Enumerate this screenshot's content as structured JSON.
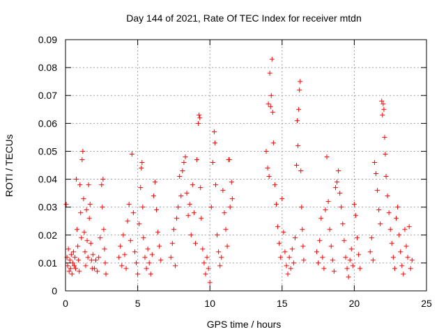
{
  "chart_data": {
    "type": "scatter",
    "title": "Day 144 of 2021, Rate Of TEC Index for receiver mtdn",
    "xlabel": "GPS time / hours",
    "ylabel": "ROTI / TECUs",
    "xlim": [
      0,
      25
    ],
    "ylim": [
      0,
      0.09
    ],
    "xticks": [
      0,
      5,
      10,
      15,
      20,
      25
    ],
    "xtick_labels": [
      "0",
      "5",
      "10",
      "15",
      "20",
      "25"
    ],
    "yticks": [
      0,
      0.01,
      0.02,
      0.03,
      0.04,
      0.05,
      0.06,
      0.07,
      0.08,
      0.09
    ],
    "ytick_labels": [
      "0",
      "0.01",
      "0.02",
      "0.03",
      "0.04",
      "0.05",
      "0.06",
      "0.07",
      "0.08",
      "0.09"
    ],
    "grid": true,
    "marker": "plus",
    "color": "#ff0000",
    "series": [
      {
        "points": [
          [
            0.05,
            0.031
          ],
          [
            0.1,
            0.012
          ],
          [
            0.15,
            0.009
          ],
          [
            0.2,
            0.015
          ],
          [
            0.25,
            0.007
          ],
          [
            0.3,
            0.011
          ],
          [
            0.35,
            0.008
          ],
          [
            0.4,
            0.013
          ],
          [
            0.45,
            0.006
          ],
          [
            0.5,
            0.01
          ],
          [
            0.55,
            0.014
          ],
          [
            0.6,
            0.009
          ],
          [
            0.65,
            0.012
          ],
          [
            0.7,
            0.008
          ],
          [
            0.75,
            0.04
          ],
          [
            0.8,
            0.022
          ],
          [
            0.85,
            0.016
          ],
          [
            0.9,
            0.011
          ],
          [
            0.95,
            0.007
          ],
          [
            1.0,
            0.038
          ],
          [
            1.05,
            0.028
          ],
          [
            1.1,
            0.019
          ],
          [
            1.15,
            0.047
          ],
          [
            1.2,
            0.05
          ],
          [
            1.25,
            0.033
          ],
          [
            1.3,
            0.021
          ],
          [
            1.35,
            0.014
          ],
          [
            1.4,
            0.009
          ],
          [
            1.45,
            0.029
          ],
          [
            1.5,
            0.018
          ],
          [
            1.55,
            0.012
          ],
          [
            1.6,
            0.038
          ],
          [
            1.65,
            0.026
          ],
          [
            1.7,
            0.031
          ],
          [
            1.75,
            0.017
          ],
          [
            1.8,
            0.011
          ],
          [
            1.85,
            0.008
          ],
          [
            1.9,
            0.013
          ],
          [
            2.0,
            0.008
          ],
          [
            2.1,
            0.011
          ],
          [
            2.2,
            0.007
          ],
          [
            2.3,
            0.012
          ],
          [
            2.4,
            0.019
          ],
          [
            2.5,
            0.038
          ],
          [
            2.55,
            0.03
          ],
          [
            2.6,
            0.04
          ],
          [
            2.65,
            0.022
          ],
          [
            2.7,
            0.015
          ],
          [
            2.75,
            0.01
          ],
          [
            2.8,
            0.006
          ],
          [
            3.7,
            0.012
          ],
          [
            3.8,
            0.016
          ],
          [
            3.9,
            0.009
          ],
          [
            4.0,
            0.02
          ],
          [
            4.1,
            0.013
          ],
          [
            4.2,
            0.008
          ],
          [
            4.3,
            0.025
          ],
          [
            4.4,
            0.031
          ],
          [
            4.5,
            0.018
          ],
          [
            4.6,
            0.049
          ],
          [
            4.7,
            0.028
          ],
          [
            4.8,
            0.014
          ],
          [
            4.9,
            0.01
          ],
          [
            5.0,
            0.006
          ],
          [
            5.1,
            0.024
          ],
          [
            5.2,
            0.037
          ],
          [
            5.25,
            0.044
          ],
          [
            5.3,
            0.046
          ],
          [
            5.35,
            0.03
          ],
          [
            5.4,
            0.019
          ],
          [
            5.5,
            0.012
          ],
          [
            5.6,
            0.008
          ],
          [
            5.7,
            0.015
          ],
          [
            5.8,
            0.01
          ],
          [
            5.9,
            0.006
          ],
          [
            6.0,
            0.013
          ],
          [
            6.1,
            0.034
          ],
          [
            6.2,
            0.039
          ],
          [
            6.3,
            0.029
          ],
          [
            6.4,
            0.021
          ],
          [
            6.5,
            0.016
          ],
          [
            6.6,
            0.011
          ],
          [
            7.3,
            0.012
          ],
          [
            7.4,
            0.017
          ],
          [
            7.5,
            0.022
          ],
          [
            7.6,
            0.009
          ],
          [
            7.7,
            0.026
          ],
          [
            7.8,
            0.03
          ],
          [
            7.9,
            0.041
          ],
          [
            8.0,
            0.034
          ],
          [
            8.1,
            0.043
          ],
          [
            8.2,
            0.046
          ],
          [
            8.3,
            0.048
          ],
          [
            8.4,
            0.035
          ],
          [
            8.5,
            0.027
          ],
          [
            8.6,
            0.031
          ],
          [
            8.7,
            0.02
          ],
          [
            8.8,
            0.038
          ],
          [
            8.9,
            0.028
          ],
          [
            9.0,
            0.017
          ],
          [
            9.1,
            0.047
          ],
          [
            9.2,
            0.06
          ],
          [
            9.25,
            0.063
          ],
          [
            9.3,
            0.062
          ],
          [
            9.35,
            0.037
          ],
          [
            9.4,
            0.026
          ],
          [
            9.5,
            0.015
          ],
          [
            9.6,
            0.01
          ],
          [
            9.7,
            0.006
          ],
          [
            9.8,
            0.012
          ],
          [
            9.9,
            0.008
          ],
          [
            10.0,
            0.003
          ],
          [
            10.1,
            0.03
          ],
          [
            10.2,
            0.046
          ],
          [
            10.3,
            0.057
          ],
          [
            10.35,
            0.053
          ],
          [
            10.4,
            0.038
          ],
          [
            10.5,
            0.02
          ],
          [
            10.6,
            0.014
          ],
          [
            10.7,
            0.009
          ],
          [
            10.8,
            0.012
          ],
          [
            10.9,
            0.036
          ],
          [
            11.0,
            0.028
          ],
          [
            11.1,
            0.022
          ],
          [
            11.2,
            0.016
          ],
          [
            11.3,
            0.047
          ],
          [
            11.35,
            0.047
          ],
          [
            11.4,
            0.03
          ],
          [
            11.5,
            0.039
          ],
          [
            11.55,
            0.033
          ],
          [
            13.9,
            0.05
          ],
          [
            14.0,
            0.044
          ],
          [
            14.05,
            0.067
          ],
          [
            14.1,
            0.041
          ],
          [
            14.15,
            0.078
          ],
          [
            14.2,
            0.066
          ],
          [
            14.25,
            0.07
          ],
          [
            14.3,
            0.083
          ],
          [
            14.35,
            0.064
          ],
          [
            14.4,
            0.053
          ],
          [
            14.5,
            0.038
          ],
          [
            14.6,
            0.031
          ],
          [
            14.7,
            0.023
          ],
          [
            14.8,
            0.017
          ],
          [
            14.9,
            0.012
          ],
          [
            15.0,
            0.033
          ],
          [
            15.1,
            0.021
          ],
          [
            15.2,
            0.014
          ],
          [
            15.3,
            0.009
          ],
          [
            15.4,
            0.006
          ],
          [
            15.5,
            0.012
          ],
          [
            15.6,
            0.008
          ],
          [
            15.7,
            0.015
          ],
          [
            15.8,
            0.01
          ],
          [
            15.9,
            0.019
          ],
          [
            16.0,
            0.045
          ],
          [
            16.05,
            0.061
          ],
          [
            16.1,
            0.052
          ],
          [
            16.15,
            0.065
          ],
          [
            16.2,
            0.072
          ],
          [
            16.25,
            0.075
          ],
          [
            16.3,
            0.043
          ],
          [
            16.35,
            0.03
          ],
          [
            16.4,
            0.022
          ],
          [
            16.45,
            0.016
          ],
          [
            16.5,
            0.011
          ],
          [
            17.4,
            0.014
          ],
          [
            17.5,
            0.01
          ],
          [
            17.6,
            0.018
          ],
          [
            17.7,
            0.026
          ],
          [
            17.8,
            0.012
          ],
          [
            17.9,
            0.008
          ],
          [
            18.0,
            0.029
          ],
          [
            18.1,
            0.048
          ],
          [
            18.2,
            0.032
          ],
          [
            18.3,
            0.022
          ],
          [
            18.4,
            0.016
          ],
          [
            18.5,
            0.011
          ],
          [
            18.6,
            0.007
          ],
          [
            18.7,
            0.037
          ],
          [
            18.8,
            0.039
          ],
          [
            18.9,
            0.043
          ],
          [
            19.0,
            0.035
          ],
          [
            19.1,
            0.03
          ],
          [
            19.2,
            0.024
          ],
          [
            19.3,
            0.018
          ],
          [
            19.4,
            0.012
          ],
          [
            19.5,
            0.008
          ],
          [
            19.6,
            0.005
          ],
          [
            19.7,
            0.011
          ],
          [
            19.8,
            0.015
          ],
          [
            19.9,
            0.009
          ],
          [
            20.0,
            0.031
          ],
          [
            20.1,
            0.027
          ],
          [
            20.2,
            0.019
          ],
          [
            20.3,
            0.013
          ],
          [
            20.4,
            0.008
          ],
          [
            21.1,
            0.014
          ],
          [
            21.2,
            0.019
          ],
          [
            21.3,
            0.011
          ],
          [
            21.4,
            0.046
          ],
          [
            21.5,
            0.042
          ],
          [
            21.6,
            0.036
          ],
          [
            21.7,
            0.029
          ],
          [
            21.8,
            0.024
          ],
          [
            21.9,
            0.068
          ],
          [
            21.95,
            0.063
          ],
          [
            22.0,
            0.067
          ],
          [
            22.05,
            0.065
          ],
          [
            22.1,
            0.055
          ],
          [
            22.15,
            0.049
          ],
          [
            22.2,
            0.041
          ],
          [
            22.3,
            0.034
          ],
          [
            22.4,
            0.028
          ],
          [
            22.5,
            0.022
          ],
          [
            22.6,
            0.017
          ],
          [
            22.7,
            0.012
          ],
          [
            22.8,
            0.008
          ],
          [
            22.9,
            0.026
          ],
          [
            23.0,
            0.03
          ],
          [
            23.1,
            0.02
          ],
          [
            23.2,
            0.014
          ],
          [
            23.3,
            0.009
          ],
          [
            23.4,
            0.006
          ],
          [
            23.5,
            0.022
          ],
          [
            23.6,
            0.016
          ],
          [
            23.7,
            0.012
          ],
          [
            23.8,
            0.023
          ],
          [
            23.9,
            0.008
          ],
          [
            24.0,
            0.011
          ]
        ]
      }
    ]
  }
}
